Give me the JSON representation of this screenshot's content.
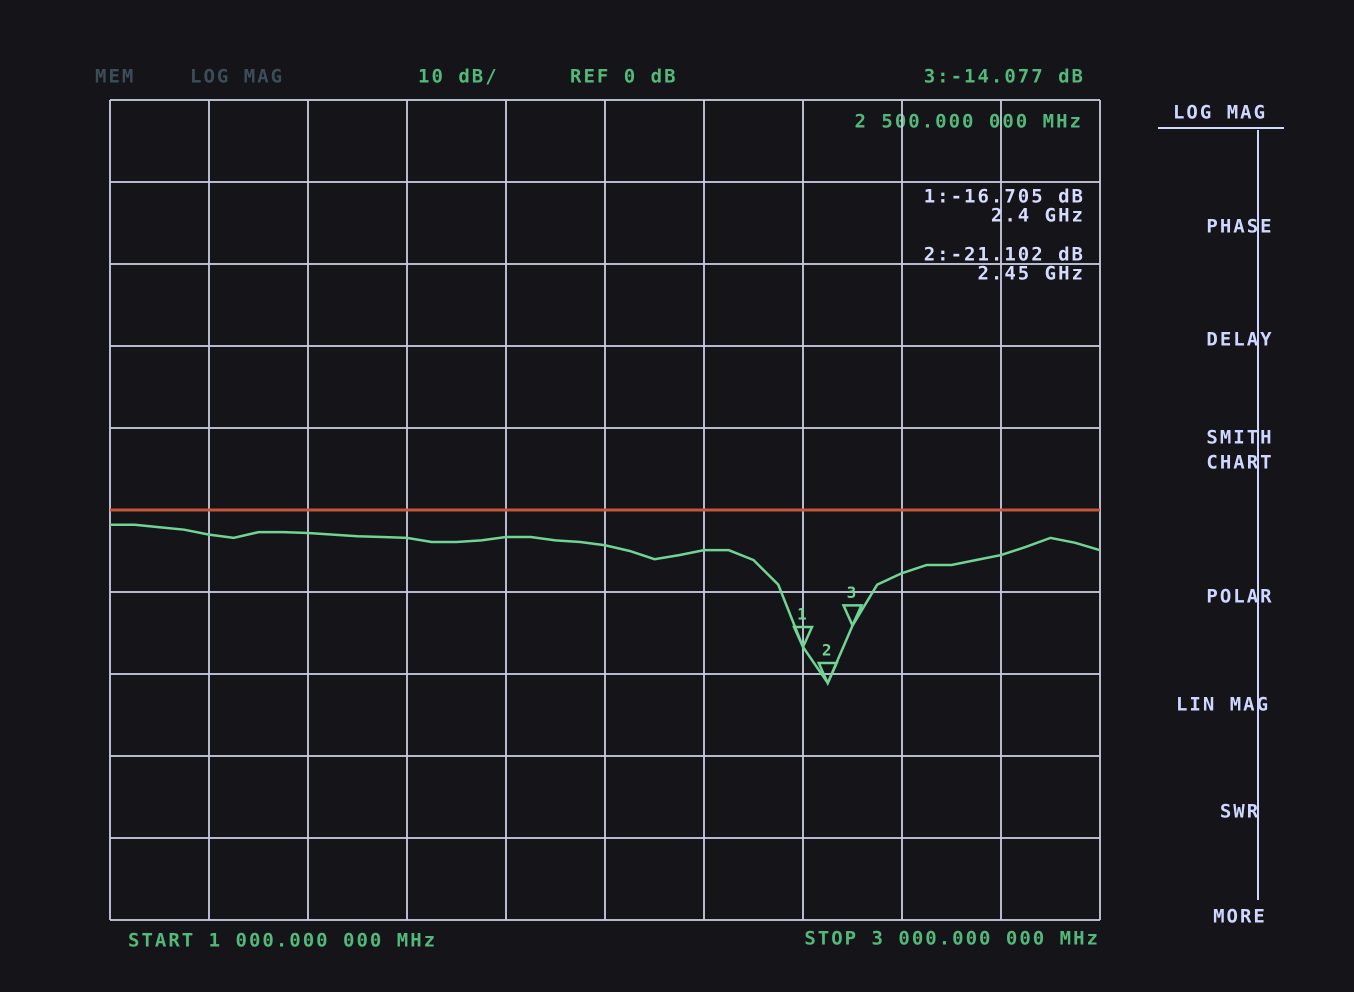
{
  "chart_data": {
    "type": "line",
    "header": {
      "memory": "MEM",
      "format": "LOG MAG",
      "scale": "10 dB/",
      "reference": "REF 0 dB"
    },
    "active_marker": {
      "readout": "3:-14.077 dB",
      "stimulus": "2 500.000 000 MHz"
    },
    "start_label": "START 1 000.000 000 MHz",
    "stop_label": "STOP 3 000.000 000 MHz",
    "xlim": [
      1000,
      3000
    ],
    "xticks": [
      1000,
      1200,
      1400,
      1600,
      1800,
      2000,
      2200,
      2400,
      2600,
      2800,
      3000
    ],
    "ylim": [
      -50,
      50
    ],
    "yticks": [
      -50,
      -40,
      -30,
      -20,
      -10,
      0,
      10,
      20,
      30,
      40,
      50
    ],
    "grid": true,
    "ref_level": 0,
    "ref_color": "#c8553a",
    "x": [
      1000,
      1050,
      1100,
      1150,
      1200,
      1250,
      1300,
      1350,
      1400,
      1450,
      1500,
      1550,
      1600,
      1650,
      1700,
      1750,
      1800,
      1850,
      1900,
      1950,
      2000,
      2050,
      2100,
      2150,
      2200,
      2250,
      2300,
      2350,
      2400,
      2450,
      2500,
      2550,
      2600,
      2650,
      2700,
      2750,
      2800,
      2850,
      2900,
      2950,
      3000
    ],
    "series": [
      {
        "color": "#6fd494",
        "values": [
          -1.8,
          -1.8,
          -2.1,
          -2.4,
          -3.0,
          -3.4,
          -2.7,
          -2.7,
          -2.8,
          -3.0,
          -3.2,
          -3.3,
          -3.4,
          -3.9,
          -3.9,
          -3.7,
          -3.3,
          -3.3,
          -3.7,
          -3.9,
          -4.3,
          -5.0,
          -6.0,
          -5.5,
          -4.9,
          -4.9,
          -6.1,
          -9.1,
          -16.7,
          -21.1,
          -14.1,
          -9.1,
          -7.7,
          -6.7,
          -6.7,
          -6.1,
          -5.5,
          -4.5,
          -3.4,
          -4.0,
          -4.9
        ]
      }
    ],
    "markers": [
      {
        "label": "1",
        "x": 2400,
        "value": -16.705,
        "readout": "1:-16.705 dB",
        "stimulus": "2.4 GHz"
      },
      {
        "label": "2",
        "x": 2450,
        "value": -21.102,
        "readout": "2:-21.102 dB",
        "stimulus": "2.45 GHz"
      },
      {
        "label": "3",
        "x": 2500,
        "value": -14.077
      }
    ],
    "softkeys": [
      [
        "LOG MAG"
      ],
      [
        "PHASE"
      ],
      [
        "DELAY"
      ],
      [
        "SMITH",
        "CHART"
      ],
      [
        "POLAR"
      ],
      [
        "LIN MAG"
      ],
      [
        "SWR"
      ],
      [
        "MORE"
      ]
    ]
  }
}
